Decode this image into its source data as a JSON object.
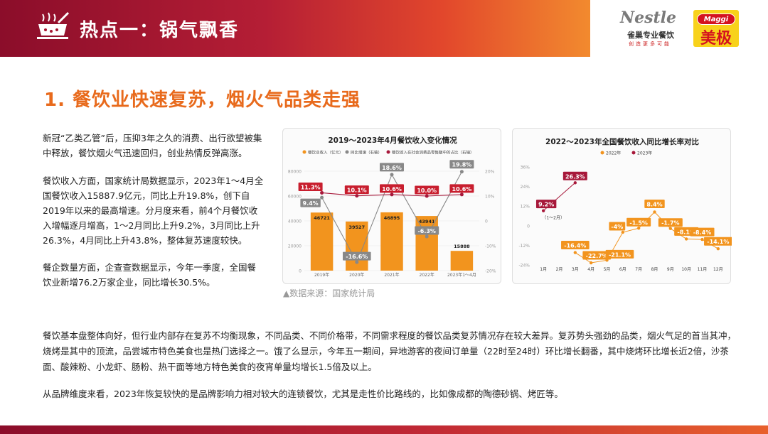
{
  "header": {
    "title": "热点一：锅气飘香",
    "nestle_word": "Nestle",
    "nestle_sub": "雀巢专业餐饮",
    "nestle_tag": "创造更多可能",
    "maggi_word": "Maggi",
    "maggi_cn": "美极"
  },
  "section_title": "1. 餐饮业快速复苏，烟火气品类走强",
  "paragraphs": {
    "p1": "新冠“乙类乙管”后，压抑3年之久的消费、出行欲望被集中释放，餐饮烟火气迅速回归，创业热情反弹高涨。",
    "p2": "餐饮收入方面，国家统计局数据显示，2023年1～4月全国餐饮收入15887.9亿元，同比上升19.8%，创下自2019年以来的最高增速。分月度来看，前4个月餐饮收入增幅逐月增高，1～2月同比上升9.2%，3月同比上升26.3%，4月同比上升43.8%，整体复苏速度较快。",
    "p3": "餐企数量方面，企查查数据显示，今年一季度，全国餐饮业新增76.2万家企业，同比增长30.5%。",
    "pw1": "餐饮基本盘整体向好，但行业内部存在复苏不均衡现象，不同品类、不同价格带，不同需求程度的餐饮品类复苏情况存在较大差异。复苏势头强劲的品类，烟火气足的首当其冲，烧烤是其中的顶流，品尝城市特色美食也是热门选择之一。饿了么显示，今年五一期间，异地游客的夜间订单量（22时至24时）环比增长翻番，其中烧烤环比增长近2倍，沙茶面、酸辣粉、小龙虾、肠粉、热干面等地方特色美食的夜宵单量均增长1.5倍及以上。",
    "pw2": "从品牌维度来看，2023年恢复较快的是品牌影响力相对较大的连锁餐饮，尤其是走性价比路线的，比如像成都的陶德砂锅、烤匠等。"
  },
  "source": "▲数据来源：国家统计局",
  "colors": {
    "orange": "#f2941e",
    "gray": "#888888",
    "crimson": "#a7183a",
    "label_red": "#c81e2e"
  },
  "chart_data": [
    {
      "type": "bar",
      "title": "2019～2023年4月餐饮收入变化情况",
      "legend": [
        "餐饮业收入（亿元）",
        "同比增速（右轴）",
        "餐饮收入在社会消费品零售额中的占比（右轴）"
      ],
      "categories": [
        "2019年",
        "2020年",
        "2021年",
        "2022年",
        "2023年1～4月"
      ],
      "series": [
        {
          "name": "餐饮业收入（亿元）",
          "values": [
            46721,
            39527,
            46895,
            43941,
            15888
          ]
        },
        {
          "name": "同比增速（右轴）",
          "values": [
            9.4,
            -16.6,
            18.6,
            -6.3,
            19.8
          ]
        },
        {
          "name": "餐饮收入在社会消费品零售额中的占比（右轴）",
          "values": [
            11.3,
            10.1,
            10.6,
            10.0,
            10.6
          ]
        }
      ],
      "value_labels": [
        "46721",
        "39527",
        "46895",
        "43941",
        "15888"
      ],
      "growth_labels": [
        "9.4%",
        "-16.6%",
        "18.6%",
        "-6.3%",
        "19.8%"
      ],
      "share_labels": [
        "11.3%",
        "10.1%",
        "10.6%",
        "10.0%",
        "10.6%"
      ],
      "y_ticks": [
        "80000",
        "60000",
        "40000",
        "20000",
        "0"
      ],
      "y2_ticks": [
        "20%",
        "10%",
        "0",
        "-10%",
        "-20%"
      ],
      "ylim": [
        0,
        80000
      ],
      "y2lim": [
        -20,
        20
      ]
    },
    {
      "type": "line",
      "title": "2022～2023年全国餐饮收入同比增长率对比",
      "legend": [
        "2022年",
        "2023年"
      ],
      "categories": [
        "1月",
        "2月",
        "3月",
        "4月",
        "5月",
        "6月",
        "7月",
        "8月",
        "9月",
        "10月",
        "11月",
        "12月"
      ],
      "series": [
        {
          "name": "2022年",
          "values": [
            null,
            null,
            -16.4,
            -22.7,
            -21.1,
            -4,
            -1.5,
            8.4,
            -1.7,
            -8.1,
            -8.4,
            -14.1
          ]
        },
        {
          "name": "2023年",
          "values": [
            9.2,
            null,
            26.3,
            null,
            null,
            null,
            null,
            null,
            null,
            null,
            null,
            null
          ]
        }
      ],
      "labels_2022": [
        "-16.4%",
        "-22.7%",
        "-21.1%",
        "-4%",
        "-1.5%",
        "8.4%",
        "-1.7%",
        "-8.1%",
        "-8.4%",
        "-14.1%"
      ],
      "labels_2023": [
        "9.2%",
        "26.3%"
      ],
      "annotation": "（1～2月）",
      "y_ticks": [
        "36%",
        "24%",
        "12%",
        "0",
        "-12%",
        "-24%"
      ],
      "ylim": [
        -24,
        36
      ]
    }
  ]
}
